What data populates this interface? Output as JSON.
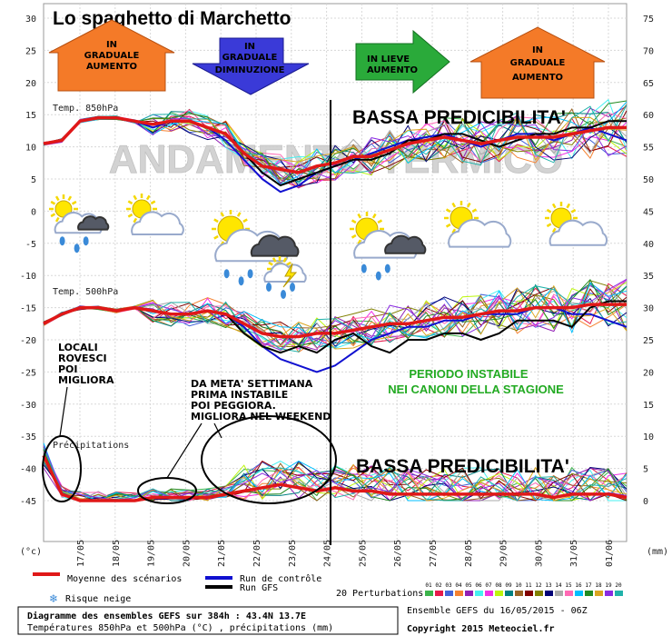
{
  "title": "Lo spaghetto di Marchetto",
  "watermark": "ANDAMENTO TERMICO",
  "colors": {
    "temp_red": "#e01818",
    "control_blue": "#1010d0",
    "gfs_black": "#000000",
    "arrow_orange": "#f47a28",
    "arrow_blue": "#3a3ad8",
    "arrow_green": "#2aaa3a",
    "green_text": "#22aa22"
  },
  "arrows": [
    {
      "text": [
        "IN",
        "GRADUALE",
        "AUMENTO"
      ],
      "direction": "up",
      "color": "orange"
    },
    {
      "text": [
        "IN",
        "GRADUALE",
        "DIMINUZIONE"
      ],
      "direction": "down",
      "color": "blue"
    },
    {
      "text": [
        "IN LIEVE",
        "AUMENTO"
      ],
      "direction": "right",
      "color": "green"
    },
    {
      "text": [
        "IN",
        "GRADUALE",
        "AUMENTO"
      ],
      "direction": "up",
      "color": "orange"
    }
  ],
  "annotations": {
    "bassa1": "BASSA PREDICIBILITA'",
    "bassa2": "BASSA PREDICIBILITA'",
    "locali": [
      "LOCALI",
      "ROVESCI",
      "POI",
      "MIGLIORA"
    ],
    "meta": [
      "DA META' SETTIMANA",
      "PRIMA INSTABILE",
      "POI PEGGIORA.",
      "MIGLIORA NEL WEEKEND"
    ],
    "periodo": [
      "PERIODO INSTABILE",
      "NEI CANONI DELLA STAGIONE"
    ]
  },
  "weather_icons": [
    "sun-cloud-rain-icon",
    "sun-cloud-icon",
    "sun-cloud-thunderstorm-icon",
    "sun-cloud-rain-icon",
    "sun-cloud-icon",
    "sun-cloud-icon"
  ],
  "chart_data": {
    "type": "line",
    "left_ticks": [
      30,
      25,
      20,
      15,
      10,
      5,
      0,
      -5,
      -10,
      -15,
      -20,
      -25,
      -30,
      -35,
      -40,
      -45
    ],
    "right_ticks": [
      75,
      70,
      65,
      60,
      55,
      50,
      45,
      40,
      35,
      30,
      25,
      20,
      15,
      10,
      5,
      0
    ],
    "left_unit": "(°c)",
    "right_unit": "(mm)",
    "x_labels": [
      "17/05",
      "18/05",
      "19/05",
      "20/05",
      "21/05",
      "22/05",
      "23/05",
      "24/05",
      "25/05",
      "26/05",
      "27/05",
      "28/05",
      "29/05",
      "30/05",
      "31/05",
      "01/06"
    ],
    "panel_labels": {
      "t850": "Temp. 850hPa",
      "t500": "Temp. 500hPa",
      "prec": "Précipitations"
    },
    "series": [
      {
        "name": "Moyenne des scénarios",
        "panel": "t850",
        "values": [
          10.5,
          11,
          14,
          14.5,
          14.5,
          14,
          13.5,
          14,
          14,
          13,
          12,
          9,
          7,
          6.5,
          6,
          7,
          7.5,
          8.5,
          8.5,
          9.5,
          10.5,
          11,
          11.5,
          11,
          10.5,
          11,
          11.5,
          11.5,
          11.5,
          12,
          12.5,
          13,
          13
        ]
      },
      {
        "name": "Run de contrôle",
        "panel": "t850",
        "values": [
          10.5,
          11,
          14,
          14.5,
          14.5,
          14,
          13,
          14,
          14,
          13,
          11,
          8,
          5,
          3,
          4,
          6,
          7,
          8,
          9,
          10,
          11,
          11.5,
          12,
          11,
          10,
          11,
          12,
          12,
          11,
          12,
          13,
          12,
          11
        ]
      },
      {
        "name": "Run GFS",
        "panel": "t850",
        "values": [
          10.5,
          11,
          14,
          14.5,
          14.5,
          14,
          13.5,
          14,
          14,
          13,
          12,
          9,
          6,
          4,
          5,
          6,
          7,
          8,
          8,
          9,
          11,
          11,
          12,
          12,
          11,
          10,
          11,
          12,
          12,
          13,
          13,
          14,
          14
        ]
      },
      {
        "name": "Moyenne des scénarios",
        "panel": "t500",
        "values": [
          -17.5,
          -16,
          -15,
          -15,
          -15.5,
          -15,
          -15.5,
          -16,
          -16,
          -15.5,
          -16,
          -17.5,
          -19,
          -19.5,
          -19.5,
          -19,
          -19,
          -18.5,
          -18,
          -17.5,
          -17.5,
          -17,
          -16.5,
          -16.5,
          -16,
          -15.5,
          -15.5,
          -15,
          -15,
          -15,
          -14.5,
          -14.5,
          -14.5
        ]
      },
      {
        "name": "Run de contrôle",
        "panel": "t500",
        "values": [
          -17.5,
          -16,
          -15,
          -15,
          -15.5,
          -15,
          -15.5,
          -16,
          -16,
          -15.5,
          -16,
          -18,
          -21,
          -23,
          -24,
          -25,
          -24,
          -22,
          -20,
          -19,
          -18,
          -18,
          -17,
          -17,
          -16,
          -16,
          -16,
          -15,
          -15,
          -16,
          -16,
          -17,
          -18
        ]
      },
      {
        "name": "Run GFS",
        "panel": "t500",
        "values": [
          -17.5,
          -16,
          -15,
          -15,
          -15.5,
          -15,
          -15.5,
          -16,
          -16,
          -15.5,
          -16,
          -19,
          -21,
          -22,
          -21,
          -22,
          -20,
          -19,
          -21,
          -22,
          -20,
          -20,
          -19,
          -19,
          -20,
          -19,
          -17,
          -17,
          -17,
          -18,
          -15,
          -14,
          -14
        ]
      },
      {
        "name": "Moyenne des scénarios",
        "panel": "prec",
        "values": [
          7,
          1,
          0,
          0,
          0,
          0,
          0.5,
          0.5,
          0.5,
          0.5,
          1,
          1.5,
          2,
          2.5,
          2,
          1.5,
          2,
          1.5,
          1.5,
          1,
          1,
          1,
          1,
          1,
          1,
          1,
          1,
          1,
          0.5,
          1,
          1,
          1,
          0.5
        ]
      }
    ],
    "legend": {
      "mean": "Moyenne des scénarios",
      "control": "Run de contrôle",
      "gfs": "Run GFS",
      "snow": "Risque neige",
      "perturbations": "20 Perturbations",
      "perturbation_ids": [
        "01",
        "02",
        "03",
        "04",
        "05",
        "06",
        "07",
        "08",
        "09",
        "10",
        "11",
        "12",
        "13",
        "14",
        "15",
        "16",
        "17",
        "18",
        "19",
        "20"
      ]
    },
    "footer": {
      "line1": "Diagramme des ensembles GEFS sur 384h : 43.4N 13.7E",
      "line2": "Températures 850hPa et 500hPa (°C) , précipitations (mm)",
      "ensemble": "Ensemble GEFS du 16/05/2015 - 06Z",
      "copyright": "Copyright 2015 Meteociel.fr"
    }
  }
}
